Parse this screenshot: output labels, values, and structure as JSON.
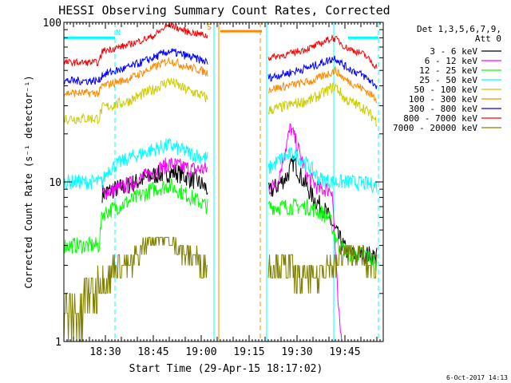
{
  "chart_data": {
    "type": "line",
    "title": "HESSI Observing Summary Count Rates, Corrected",
    "xlabel": "Start Time (29-Apr-15 18:17:02)",
    "ylabel": "Corrected Count Rate (s⁻¹ detector⁻¹)",
    "y_scale": "log",
    "ylim": [
      1,
      100
    ],
    "xlim_minutes_after_start": [
      0,
      100
    ],
    "x_ticks": [
      {
        "label": "18:30",
        "t": 13
      },
      {
        "label": "18:45",
        "t": 28
      },
      {
        "label": "19:00",
        "t": 43
      },
      {
        "label": "19:15",
        "t": 58
      },
      {
        "label": "19:30",
        "t": 73
      },
      {
        "label": "19:45",
        "t": 88
      }
    ],
    "y_ticks": [
      {
        "label": "1",
        "v": 1
      },
      {
        "label": "10",
        "v": 10
      },
      {
        "label": "100",
        "v": 100
      }
    ],
    "legend_header": [
      "Det 1,3,5,6,7,9,",
      "Att 0"
    ],
    "legend_placement": "top-right",
    "date_stamp": "6-Oct-2017 14:13",
    "flag_labels": [
      {
        "text": "N",
        "t": 17,
        "v": 83,
        "color": "#00ffff"
      },
      {
        "text": "S",
        "t": 45.5,
        "v": 90,
        "color": "#ff8800"
      }
    ],
    "flag_bars": [
      {
        "t0": 0,
        "t1": 16,
        "v": 80,
        "color": "#00ffff"
      },
      {
        "t0": 89,
        "t1": 98.5,
        "v": 80,
        "color": "#00ffff"
      },
      {
        "t0": 49,
        "t1": 62,
        "v": 88,
        "color": "#ff8800"
      }
    ],
    "vlines": [
      {
        "t": 16,
        "style": "dashed",
        "color": "#00ffff"
      },
      {
        "t": 47,
        "style": "solid",
        "color": "#00ffff"
      },
      {
        "t": 48.5,
        "style": "solid",
        "color": "#ff8800"
      },
      {
        "t": 61.5,
        "style": "dashed",
        "color": "#ff8800"
      },
      {
        "t": 63.5,
        "style": "solid",
        "color": "#00ffff"
      },
      {
        "t": 84.5,
        "style": "solid",
        "color": "#00ffff"
      },
      {
        "t": 98.5,
        "style": "dashed",
        "color": "#00ffff"
      }
    ],
    "series": [
      {
        "name": "3 - 6 keV",
        "color": "#000000",
        "noise": 0.14,
        "segments": [
          [
            [
              12,
              8.5
            ],
            [
              20,
              9.5
            ],
            [
              28,
              11
            ],
            [
              35,
              11.5
            ],
            [
              42,
              10
            ],
            [
              45,
              9
            ]
          ],
          [
            [
              64,
              8.5
            ],
            [
              67,
              9.5
            ],
            [
              70,
              11
            ],
            [
              72,
              13.5
            ],
            [
              74,
              11
            ],
            [
              78,
              8
            ],
            [
              82,
              6.5
            ],
            [
              86,
              4.5
            ],
            [
              89,
              3.5
            ],
            [
              95,
              3.5
            ],
            [
              98,
              3.4
            ]
          ]
        ]
      },
      {
        "name": "6 - 12 keV",
        "color": "#ff00ff",
        "noise": 0.12,
        "segments": [
          [
            [
              12,
              8.5
            ],
            [
              20,
              9.5
            ],
            [
              28,
              11.5
            ],
            [
              33,
              13
            ],
            [
              40,
              12
            ],
            [
              45,
              12
            ]
          ],
          [
            [
              64,
              9
            ],
            [
              67,
              10
            ],
            [
              69,
              15
            ],
            [
              71,
              22
            ],
            [
              73,
              17
            ],
            [
              76,
              11
            ],
            [
              80,
              9
            ],
            [
              84,
              9
            ],
            [
              86,
              1.5
            ],
            [
              87,
              1
            ]
          ]
        ]
      },
      {
        "name": "12 - 25 keV",
        "color": "#00ff00",
        "noise": 0.12,
        "segments": [
          [
            [
              0,
              4
            ],
            [
              11,
              4
            ],
            [
              12,
              6.3
            ],
            [
              20,
              7.5
            ],
            [
              28,
              9
            ],
            [
              33,
              9.5
            ],
            [
              40,
              8
            ],
            [
              45,
              7
            ]
          ],
          [
            [
              64,
              7
            ],
            [
              70,
              7
            ],
            [
              76,
              7
            ],
            [
              80,
              6.5
            ],
            [
              83,
              6
            ],
            [
              86,
              4
            ],
            [
              90,
              3.5
            ],
            [
              95,
              3.5
            ],
            [
              98,
              3
            ]
          ]
        ]
      },
      {
        "name": "25 - 50 keV",
        "color": "#00ffff",
        "noise": 0.11,
        "segments": [
          [
            [
              0,
              10
            ],
            [
              12,
              10
            ],
            [
              14,
              12
            ],
            [
              20,
              14
            ],
            [
              28,
              16
            ],
            [
              33,
              17
            ],
            [
              40,
              15
            ],
            [
              45,
              14
            ]
          ],
          [
            [
              64,
              12
            ],
            [
              68,
              14
            ],
            [
              72,
              15
            ],
            [
              76,
              13
            ],
            [
              80,
              10.5
            ],
            [
              84,
              10
            ],
            [
              90,
              10
            ],
            [
              98,
              9.5
            ]
          ]
        ]
      },
      {
        "name": "50 - 100 keV",
        "color": "#cccc00",
        "noise": 0.08,
        "segments": [
          [
            [
              0,
              25
            ],
            [
              11,
              25
            ],
            [
              12,
              29
            ],
            [
              20,
              32
            ],
            [
              28,
              38
            ],
            [
              33,
              43
            ],
            [
              38,
              38
            ],
            [
              43,
              35
            ],
            [
              45,
              33
            ]
          ],
          [
            [
              64,
              28
            ],
            [
              70,
              30
            ],
            [
              78,
              33
            ],
            [
              83,
              38
            ],
            [
              85,
              40
            ],
            [
              88,
              33
            ],
            [
              94,
              29
            ],
            [
              98,
              24
            ]
          ]
        ]
      },
      {
        "name": "100 - 300 keV",
        "color": "#ff8800",
        "noise": 0.06,
        "segments": [
          [
            [
              0,
              36
            ],
            [
              11,
              36
            ],
            [
              12,
              40
            ],
            [
              20,
              44
            ],
            [
              28,
              52
            ],
            [
              33,
              58
            ],
            [
              38,
              53
            ],
            [
              43,
              50
            ],
            [
              45,
              48
            ]
          ],
          [
            [
              64,
              38
            ],
            [
              70,
              40
            ],
            [
              78,
              43
            ],
            [
              83,
              48
            ],
            [
              85,
              50
            ],
            [
              88,
              44
            ],
            [
              94,
              38
            ],
            [
              98,
              33
            ]
          ]
        ]
      },
      {
        "name": "300 - 800 keV",
        "color": "#0000ff",
        "noise": 0.06,
        "segments": [
          [
            [
              0,
              43
            ],
            [
              11,
              43
            ],
            [
              12,
              47
            ],
            [
              20,
              52
            ],
            [
              28,
              60
            ],
            [
              33,
              66
            ],
            [
              38,
              62
            ],
            [
              43,
              58
            ],
            [
              45,
              56
            ]
          ],
          [
            [
              64,
              45
            ],
            [
              70,
              48
            ],
            [
              78,
              53
            ],
            [
              83,
              58
            ],
            [
              85,
              60
            ],
            [
              88,
              53
            ],
            [
              94,
              46
            ],
            [
              98,
              40
            ]
          ]
        ]
      },
      {
        "name": "800 - 7000 keV",
        "color": "#ff0000",
        "noise": 0.05,
        "segments": [
          [
            [
              0,
              56
            ],
            [
              11,
              56
            ],
            [
              12,
              66
            ],
            [
              20,
              72
            ],
            [
              28,
              82
            ],
            [
              33,
              97
            ],
            [
              38,
              88
            ],
            [
              43,
              84
            ],
            [
              45,
              82
            ]
          ],
          [
            [
              64,
              60
            ],
            [
              70,
              63
            ],
            [
              78,
              70
            ],
            [
              84,
              80
            ],
            [
              86,
              77
            ],
            [
              88,
              70
            ],
            [
              94,
              63
            ],
            [
              98,
              52
            ]
          ]
        ]
      },
      {
        "name": "7000 - 20000 keV",
        "color": "#808000",
        "noise": 0.35,
        "quantized": true,
        "segments": [
          [
            [
              0,
              1.5
            ],
            [
              6,
              1.5
            ],
            [
              12,
              2.2
            ],
            [
              15,
              2.5
            ],
            [
              18,
              3
            ],
            [
              22,
              3
            ],
            [
              24,
              3.4
            ],
            [
              26,
              4
            ],
            [
              32,
              4.2
            ],
            [
              36,
              3.6
            ],
            [
              42,
              3
            ],
            [
              45,
              2.8
            ]
          ],
          [
            [
              64,
              2.6
            ],
            [
              72,
              2.5
            ],
            [
              80,
              2.5
            ],
            [
              84,
              2.6
            ],
            [
              86,
              3
            ],
            [
              90,
              3.3
            ],
            [
              94,
              3
            ],
            [
              98,
              2.8
            ]
          ]
        ]
      }
    ]
  }
}
